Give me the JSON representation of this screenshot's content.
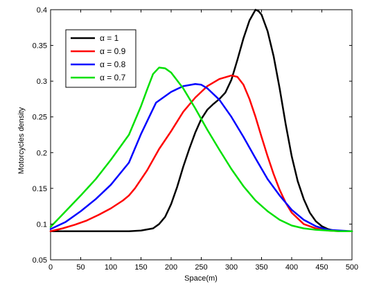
{
  "chart_data": {
    "type": "line",
    "title": "",
    "xlabel": "Space(m)",
    "ylabel": "Motorcycles density",
    "xlim": [
      0,
      500
    ],
    "ylim": [
      0.05,
      0.4
    ],
    "xticks": [
      0,
      50,
      100,
      150,
      200,
      250,
      300,
      350,
      400,
      450,
      500
    ],
    "yticks": [
      0.05,
      0.1,
      0.15,
      0.2,
      0.25,
      0.3,
      0.35,
      0.4
    ],
    "xtick_labels": [
      "0",
      "50",
      "100",
      "150",
      "200",
      "250",
      "300",
      "350",
      "400",
      "450",
      "500"
    ],
    "ytick_labels": [
      "0.05",
      "0.1",
      "0.15",
      "0.2",
      "0.25",
      "0.3",
      "0.35",
      "0.4"
    ],
    "grid": false,
    "legend_position": "top-left",
    "series": [
      {
        "name": "α = 1",
        "color": "#000000",
        "x": [
          0,
          100,
          130,
          150,
          170,
          180,
          190,
          200,
          210,
          220,
          230,
          240,
          250,
          260,
          270,
          280,
          290,
          300,
          310,
          320,
          330,
          340,
          345,
          350,
          360,
          370,
          380,
          390,
          400,
          410,
          420,
          430,
          440,
          450,
          460,
          470,
          480,
          500
        ],
        "y": [
          0.09,
          0.09,
          0.09,
          0.091,
          0.094,
          0.1,
          0.11,
          0.128,
          0.152,
          0.18,
          0.205,
          0.228,
          0.247,
          0.26,
          0.268,
          0.275,
          0.284,
          0.302,
          0.33,
          0.36,
          0.385,
          0.4,
          0.398,
          0.393,
          0.37,
          0.335,
          0.29,
          0.24,
          0.195,
          0.16,
          0.135,
          0.116,
          0.104,
          0.097,
          0.093,
          0.091,
          0.09,
          0.09
        ]
      },
      {
        "name": "α = 0.9",
        "color": "#ff0000",
        "x": [
          0,
          20,
          40,
          60,
          80,
          100,
          120,
          130,
          140,
          160,
          180,
          200,
          220,
          240,
          260,
          280,
          300,
          310,
          320,
          330,
          340,
          350,
          360,
          370,
          380,
          390,
          400,
          420,
          440,
          460,
          480,
          500
        ],
        "y": [
          0.09,
          0.094,
          0.099,
          0.105,
          0.113,
          0.122,
          0.133,
          0.14,
          0.15,
          0.175,
          0.205,
          0.23,
          0.257,
          0.277,
          0.293,
          0.303,
          0.308,
          0.306,
          0.295,
          0.275,
          0.25,
          0.222,
          0.195,
          0.17,
          0.148,
          0.13,
          0.116,
          0.1,
          0.094,
          0.091,
          0.09,
          0.09
        ]
      },
      {
        "name": "α = 0.8",
        "color": "#0000ff",
        "x": [
          0,
          25,
          50,
          75,
          100,
          130,
          150,
          175,
          200,
          220,
          240,
          250,
          260,
          280,
          300,
          320,
          340,
          360,
          380,
          400,
          420,
          440,
          460,
          480,
          500
        ],
        "y": [
          0.093,
          0.103,
          0.118,
          0.135,
          0.155,
          0.186,
          0.226,
          0.27,
          0.285,
          0.293,
          0.296,
          0.295,
          0.29,
          0.274,
          0.25,
          0.222,
          0.192,
          0.163,
          0.14,
          0.12,
          0.106,
          0.097,
          0.092,
          0.091,
          0.09
        ]
      },
      {
        "name": "α = 0.7",
        "color": "#00e000",
        "x": [
          0,
          25,
          50,
          75,
          100,
          130,
          150,
          160,
          170,
          180,
          190,
          200,
          220,
          240,
          260,
          280,
          300,
          320,
          340,
          360,
          380,
          400,
          420,
          440,
          460,
          480,
          500
        ],
        "y": [
          0.096,
          0.118,
          0.14,
          0.163,
          0.19,
          0.225,
          0.265,
          0.288,
          0.31,
          0.319,
          0.318,
          0.312,
          0.29,
          0.262,
          0.232,
          0.204,
          0.177,
          0.153,
          0.133,
          0.118,
          0.106,
          0.098,
          0.094,
          0.092,
          0.091,
          0.09,
          0.09
        ]
      }
    ]
  }
}
